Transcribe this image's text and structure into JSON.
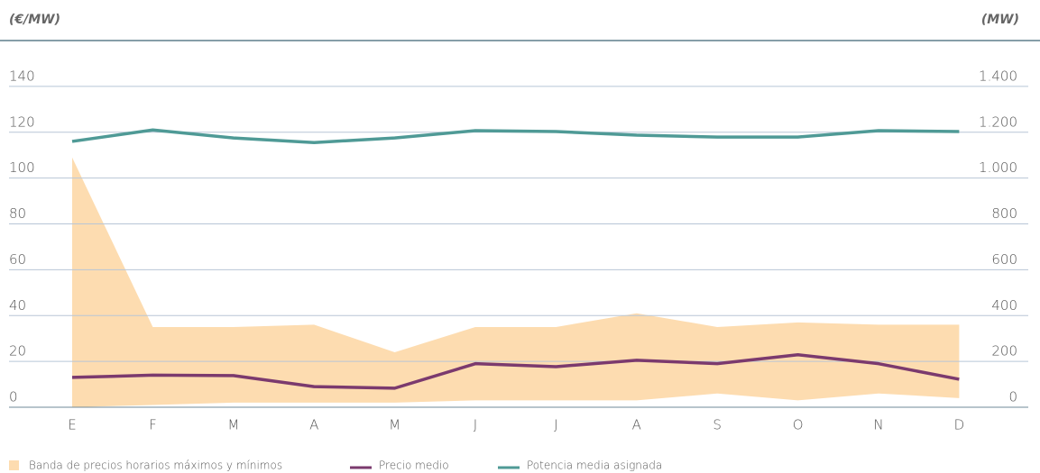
{
  "chart_data": {
    "type": "line",
    "y_label": "(€/MW)",
    "y2_label": "(MW)",
    "categories": [
      "E",
      "F",
      "M",
      "A",
      "M",
      "J",
      "J",
      "A",
      "S",
      "O",
      "N",
      "D"
    ],
    "ylim": [
      0,
      160
    ],
    "yticks": [
      0,
      20,
      40,
      60,
      80,
      100,
      120,
      140
    ],
    "y2lim": [
      0,
      1600
    ],
    "y2ticks": [
      0,
      200,
      400,
      600,
      800,
      {
        "value": 1000,
        "label": "1.000"
      },
      {
        "value": 1200,
        "label": "1.200"
      },
      {
        "value": 1400,
        "label": "1.400"
      }
    ],
    "grid": true,
    "band": {
      "name": "Banda de precios horarios máximos y mínimos",
      "color": "#fddcb0",
      "high": [
        109,
        35,
        35,
        36,
        24,
        35,
        35,
        41,
        35,
        37,
        36,
        36
      ],
      "low": [
        0,
        1,
        2,
        2,
        2,
        3,
        3,
        3,
        6,
        3,
        6,
        4
      ]
    },
    "series": [
      {
        "name": "Precio medio",
        "color": "#7b3a6e",
        "values": [
          13,
          14,
          13.8,
          9,
          8.3,
          19,
          17.7,
          20.5,
          19,
          22.9,
          19,
          12.2
        ]
      },
      {
        "name": "Potencia media asignada",
        "color": "#4f9a96",
        "axis": "y2",
        "values": [
          1160,
          1210,
          1175,
          1155,
          1175,
          1207,
          1203,
          1187,
          1179,
          1179,
          1207,
          1203
        ]
      }
    ]
  }
}
